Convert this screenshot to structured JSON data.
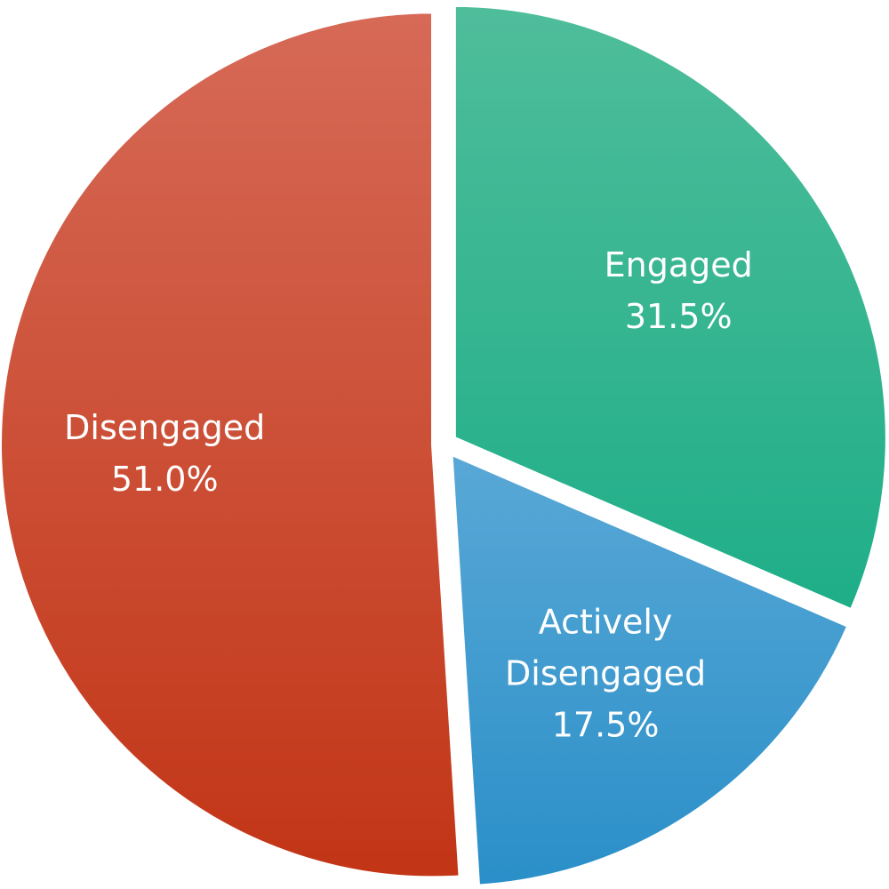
{
  "chart_data": {
    "type": "pie",
    "slices": [
      {
        "name": "Engaged",
        "value": 31.5,
        "value_label": "31.5%",
        "color": "#1eae88",
        "color_light": "#4fbd9a",
        "label_lines": [
          "Engaged"
        ]
      },
      {
        "name": "Actively Disengaged",
        "value": 17.5,
        "value_label": "17.5%",
        "color": "#2a8fc8",
        "color_light": "#59a8d6",
        "label_lines": [
          "Actively",
          "Disengaged"
        ]
      },
      {
        "name": "Disengaged",
        "value": 51.0,
        "value_label": "51.0%",
        "color": "#c23516",
        "color_light": "#d66a57",
        "label_lines": [
          "Disengaged"
        ]
      }
    ],
    "start_at": "12 o'clock",
    "direction": "clockwise",
    "exploded": true,
    "legend": "none",
    "data_labels": "inside"
  }
}
